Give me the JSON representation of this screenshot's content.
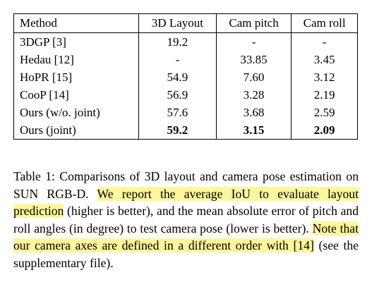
{
  "table": {
    "headers": [
      "Method",
      "3D Layout",
      "Cam pitch",
      "Cam roll"
    ],
    "rows": [
      {
        "method": "3DGP [3]",
        "layout": "19.2",
        "pitch": "-",
        "roll": "-"
      },
      {
        "method": "Hedau [12]",
        "layout": "-",
        "pitch": "33.85",
        "roll": "3.45"
      },
      {
        "method": "HoPR [15]",
        "layout": "54.9",
        "pitch": "7.60",
        "roll": "3.12"
      },
      {
        "method": "CooP [14]",
        "layout": "56.9",
        "pitch": "3.28",
        "roll": "2.19"
      },
      {
        "method": "Ours (w/o. joint)",
        "layout": "57.6",
        "pitch": "3.68",
        "roll": "2.59"
      },
      {
        "method": "Ours (joint)",
        "layout": "59.2",
        "pitch": "3.15",
        "roll": "2.09"
      }
    ]
  },
  "caption": {
    "part1": "Table 1: Comparisons of 3D layout and camera pose estimation on SUN RGB-D. ",
    "highlight1": "We report the average IoU to evaluate layout prediction",
    "part2": " (higher is better), and the mean absolute error of pitch and roll angles (in degree) to test camera pose (lower is better). ",
    "highlight2": "Note that our camera axes are defined in a different order with [14]",
    "part3": " (see the supplementary file)."
  },
  "colors": {
    "highlight": "#fff59a"
  }
}
